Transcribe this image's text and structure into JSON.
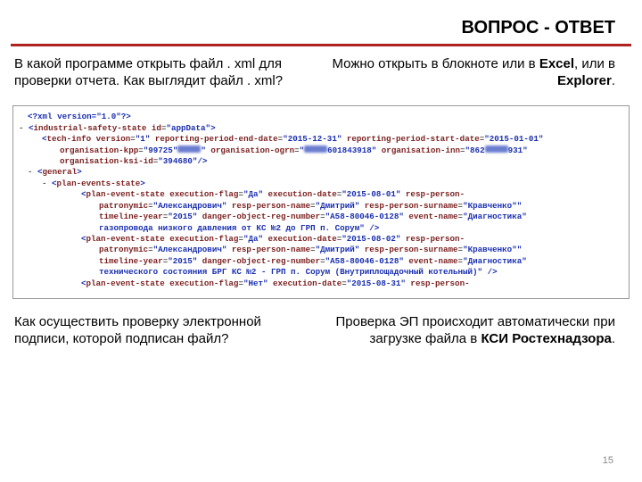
{
  "colors": {
    "rule": "#b02121",
    "tag": "#7a1f1f",
    "val": "#1a2fb0",
    "text": "#000000",
    "pagenum": "#888888"
  },
  "title": "ВОПРОС - ОТВЕТ",
  "qa1": {
    "q": "В какой программе открыть файл . xml для проверки отчета. Как выглядит файл . xml?",
    "a_pre": "Можно открыть в блокноте или в ",
    "a_b1": "Excel",
    "a_mid": ", или в ",
    "a_b2": "Explorer",
    "a_post": "."
  },
  "xml": {
    "l1": "<?xml version=\"1.0\"?>",
    "root_open_tag": "industrial-safety-state",
    "root_attr": "id",
    "root_val": "appData",
    "tech_tag": "tech-info",
    "tech_attrs": [
      {
        "n": "version",
        "v": "1"
      },
      {
        "n": "reporting-period-end-date",
        "v": "2015-12-31"
      },
      {
        "n": "reporting-period-start-date",
        "v": "2015-01-01"
      }
    ],
    "tech_attrs2": [
      {
        "n": "organisation-kpp",
        "v": "99725"
      },
      {
        "n": "organisation-ogrn",
        "v": ""
      },
      {
        "n": "organisation-inn",
        "v": "862"
      }
    ],
    "tech_attrs2_suffix": {
      "ogrn_suffix": "601843918",
      "inn_suffix": "931"
    },
    "tech_attrs3": [
      {
        "n": "organisation-ksi-id",
        "v": "394680"
      }
    ],
    "general": "general",
    "pes": "plan-events-state",
    "pe_tag": "plan-event-state",
    "pe1_a": [
      {
        "n": "execution-flag",
        "v": "Да"
      },
      {
        "n": "execution-date",
        "v": "2015-08-01"
      },
      {
        "n": "resp-person-",
        "v": null
      }
    ],
    "pe1_b": [
      {
        "n": "patronymic",
        "v": "Александрович"
      },
      {
        "n": "resp-person-name",
        "v": "Дмитрий"
      },
      {
        "n": "resp-person-surname",
        "v": "Кравченко"
      }
    ],
    "pe1_c": [
      {
        "n": "timeline-year",
        "v": "2015"
      },
      {
        "n": "danger-object-reg-number",
        "v": "A58-80046-0128"
      },
      {
        "n": "event-name",
        "v": "Диагностика"
      }
    ],
    "pe1_d": "газопровода низкого давления от КС №2 до ГРП п. Сорум",
    "pe2_a": [
      {
        "n": "execution-flag",
        "v": "Да"
      },
      {
        "n": "execution-date",
        "v": "2015-08-02"
      },
      {
        "n": "resp-person-",
        "v": null
      }
    ],
    "pe2_b": [
      {
        "n": "patronymic",
        "v": "Александрович"
      },
      {
        "n": "resp-person-name",
        "v": "Дмитрий"
      },
      {
        "n": "resp-person-surname",
        "v": "Кравченко"
      }
    ],
    "pe2_c": [
      {
        "n": "timeline-year",
        "v": "2015"
      },
      {
        "n": "danger-object-reg-number",
        "v": "A58-80046-0128"
      },
      {
        "n": "event-name",
        "v": "Диагностика"
      }
    ],
    "pe2_d": "технического состояния БРГ КС №2 - ГРП п. Сорум (Внутриплощадочный котельный)",
    "pe3_a": [
      {
        "n": "execution-flag",
        "v": "Нет"
      },
      {
        "n": "execution-date",
        "v": "2015-08-31"
      },
      {
        "n": "resp-person-",
        "v": null
      }
    ]
  },
  "qa2": {
    "q": "Как осуществить проверку электронной подписи, которой подписан файл?",
    "a_pre": "Проверка ЭП происходит автоматически при загрузке файла в ",
    "a_b1": "КСИ Ростехнадзора",
    "a_post": "."
  },
  "pagenum": "15"
}
